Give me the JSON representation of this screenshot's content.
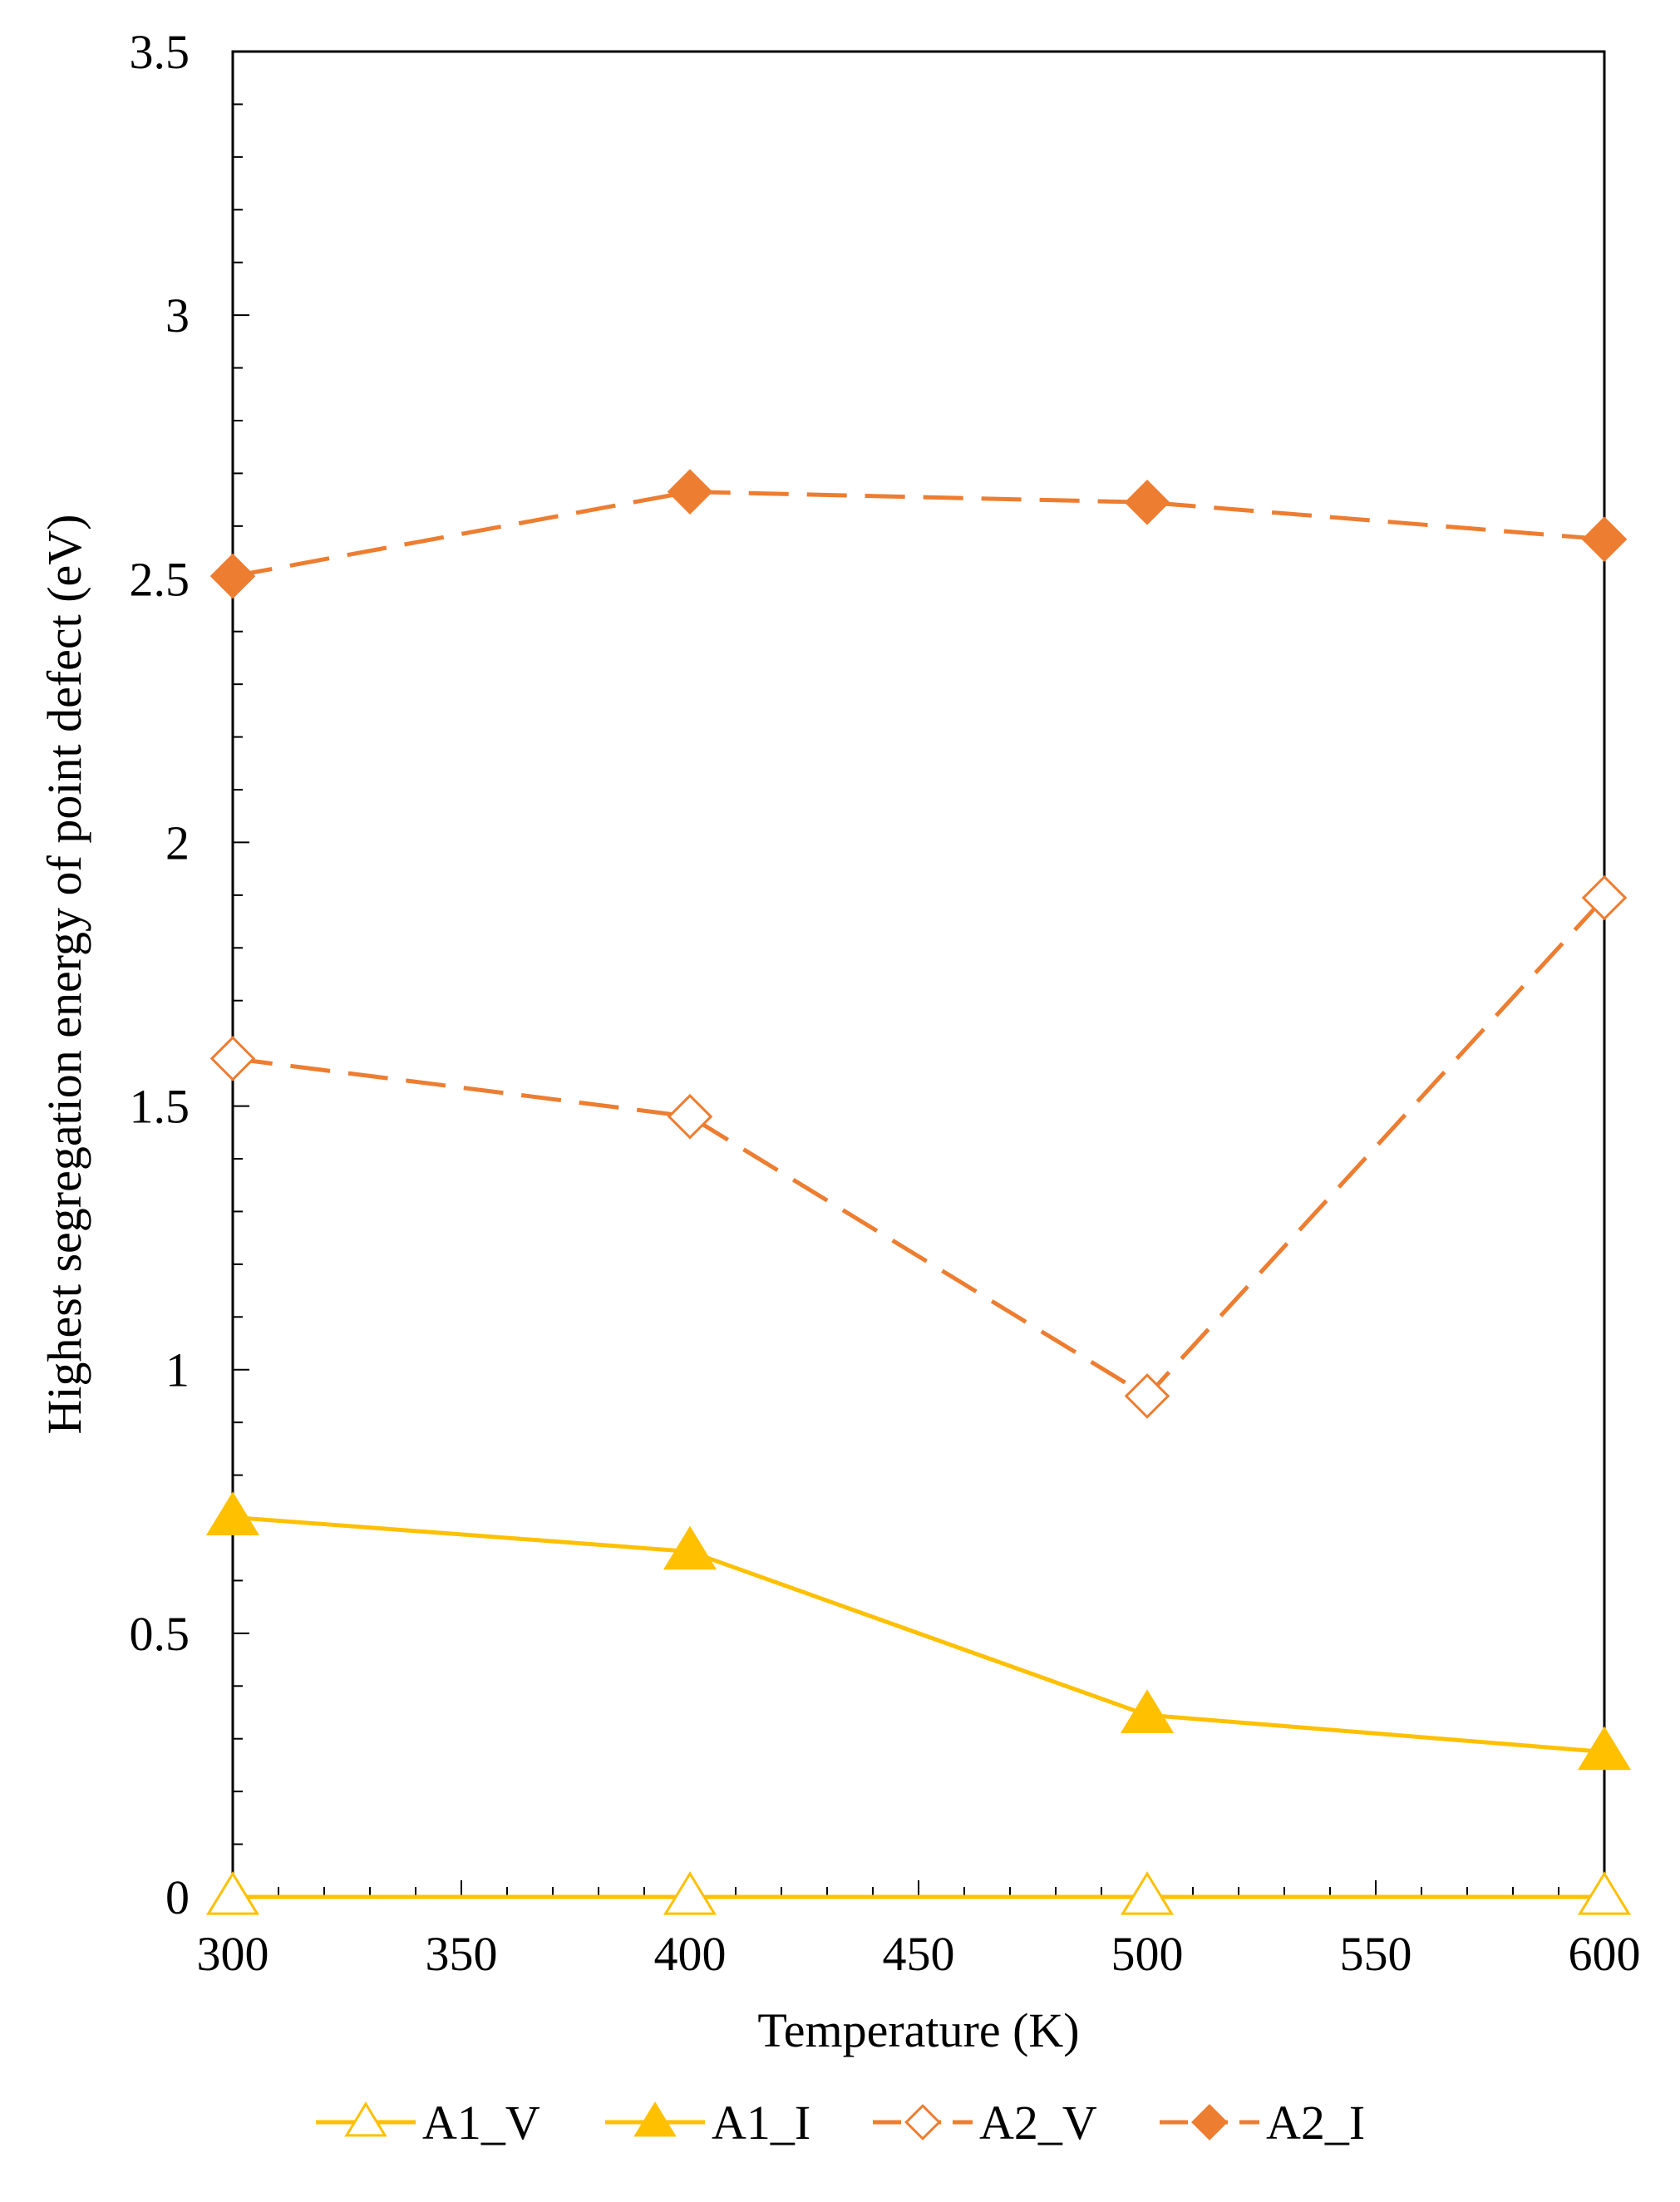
{
  "chart_data": {
    "type": "line",
    "title": "",
    "xlabel": "Temperature (K)",
    "ylabel": "Highest  segregation energy of point defect (eV)",
    "xlim": [
      300,
      600
    ],
    "ylim": [
      0,
      3.5
    ],
    "x_ticks": [
      300,
      350,
      400,
      450,
      500,
      550,
      600
    ],
    "x_tick_labels": [
      "300",
      "350",
      "400",
      "450",
      "500",
      "550",
      "600"
    ],
    "y_ticks": [
      0,
      0.5,
      1,
      1.5,
      2,
      2.5,
      3,
      3.5
    ],
    "y_tick_labels": [
      "0",
      "0.5",
      "1",
      "1.5",
      "2",
      "2.5",
      "3",
      "3.5"
    ],
    "grid": false,
    "legend_position": "bottom",
    "x": [
      300,
      400,
      500,
      600
    ],
    "series": [
      {
        "name": "A1_V",
        "values": [
          0,
          0,
          0,
          0
        ],
        "color": "#FFC000",
        "marker": "triangle-open",
        "line": "solid"
      },
      {
        "name": "A1_I",
        "values": [
          0.72,
          0.655,
          0.345,
          0.275
        ],
        "color": "#FFC000",
        "marker": "triangle-filled",
        "line": "solid"
      },
      {
        "name": "A2_V",
        "values": [
          1.59,
          1.48,
          0.95,
          1.895
        ],
        "color": "#ED7D31",
        "marker": "diamond-open",
        "line": "dashed"
      },
      {
        "name": "A2_I",
        "values": [
          2.505,
          2.665,
          2.645,
          2.575
        ],
        "color": "#ED7D31",
        "marker": "diamond-filled",
        "line": "dashed"
      }
    ]
  }
}
